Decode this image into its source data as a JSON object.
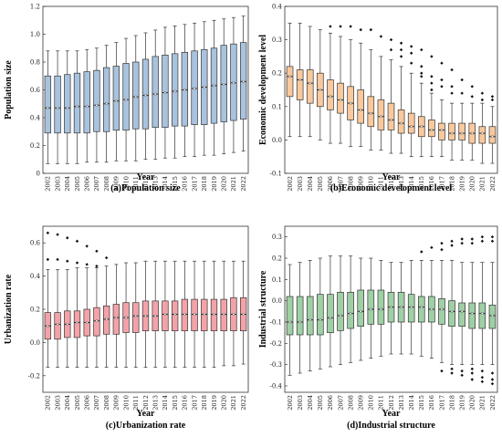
{
  "chart_data": [
    {
      "type": "box",
      "caption": "(a)Population size",
      "xlabel": "Year",
      "ylabel": "Population size",
      "ylim": [
        0,
        1.2
      ],
      "yticks": [
        "0",
        "0.2",
        "0.4",
        "0.6",
        "0.8",
        "1.0",
        "1.2"
      ],
      "categories": [
        "2002",
        "2003",
        "2004",
        "2005",
        "2006",
        "2007",
        "2008",
        "2009",
        "2010",
        "2011",
        "2012",
        "2013",
        "2014",
        "2015",
        "2016",
        "2017",
        "2018",
        "2019",
        "2020",
        "2021",
        "2022"
      ],
      "color": "#a9c3de",
      "stroke": "#333333",
      "boxes": [
        {
          "low": 0.07,
          "q1": 0.29,
          "median": 0.47,
          "q3": 0.7,
          "high": 0.88,
          "outliers": []
        },
        {
          "low": 0.07,
          "q1": 0.29,
          "median": 0.47,
          "q3": 0.7,
          "high": 0.88,
          "outliers": []
        },
        {
          "low": 0.07,
          "q1": 0.29,
          "median": 0.47,
          "q3": 0.71,
          "high": 0.88,
          "outliers": []
        },
        {
          "low": 0.07,
          "q1": 0.29,
          "median": 0.48,
          "q3": 0.72,
          "high": 0.88,
          "outliers": []
        },
        {
          "low": 0.08,
          "q1": 0.29,
          "median": 0.48,
          "q3": 0.73,
          "high": 0.89,
          "outliers": []
        },
        {
          "low": 0.08,
          "q1": 0.3,
          "median": 0.49,
          "q3": 0.74,
          "high": 0.9,
          "outliers": []
        },
        {
          "low": 0.08,
          "q1": 0.3,
          "median": 0.5,
          "q3": 0.76,
          "high": 0.92,
          "outliers": []
        },
        {
          "low": 0.09,
          "q1": 0.31,
          "median": 0.52,
          "q3": 0.77,
          "high": 0.94,
          "outliers": []
        },
        {
          "low": 0.09,
          "q1": 0.31,
          "median": 0.53,
          "q3": 0.79,
          "high": 0.97,
          "outliers": []
        },
        {
          "low": 0.09,
          "q1": 0.32,
          "median": 0.55,
          "q3": 0.8,
          "high": 0.99,
          "outliers": []
        },
        {
          "low": 0.1,
          "q1": 0.32,
          "median": 0.56,
          "q3": 0.82,
          "high": 1.01,
          "outliers": []
        },
        {
          "low": 0.1,
          "q1": 0.33,
          "median": 0.57,
          "q3": 0.84,
          "high": 1.03,
          "outliers": []
        },
        {
          "low": 0.11,
          "q1": 0.33,
          "median": 0.58,
          "q3": 0.85,
          "high": 1.05,
          "outliers": []
        },
        {
          "low": 0.11,
          "q1": 0.34,
          "median": 0.59,
          "q3": 0.86,
          "high": 1.06,
          "outliers": []
        },
        {
          "low": 0.12,
          "q1": 0.34,
          "median": 0.6,
          "q3": 0.87,
          "high": 1.07,
          "outliers": []
        },
        {
          "low": 0.12,
          "q1": 0.35,
          "median": 0.61,
          "q3": 0.88,
          "high": 1.08,
          "outliers": []
        },
        {
          "low": 0.13,
          "q1": 0.35,
          "median": 0.62,
          "q3": 0.89,
          "high": 1.09,
          "outliers": []
        },
        {
          "low": 0.13,
          "q1": 0.36,
          "median": 0.63,
          "q3": 0.9,
          "high": 1.1,
          "outliers": []
        },
        {
          "low": 0.14,
          "q1": 0.37,
          "median": 0.64,
          "q3": 0.92,
          "high": 1.11,
          "outliers": []
        },
        {
          "low": 0.15,
          "q1": 0.38,
          "median": 0.65,
          "q3": 0.93,
          "high": 1.12,
          "outliers": []
        },
        {
          "low": 0.16,
          "q1": 0.39,
          "median": 0.66,
          "q3": 0.94,
          "high": 1.13,
          "outliers": []
        }
      ]
    },
    {
      "type": "box",
      "caption": "(b)Economic development level",
      "xlabel": "Year",
      "ylabel": "Economic development level",
      "ylim": [
        -0.1,
        0.4
      ],
      "yticks": [
        "-0.1",
        "0.0",
        "0.1",
        "0.2",
        "0.3",
        "0.4"
      ],
      "categories": [
        "2002",
        "2003",
        "2004",
        "2005",
        "2006",
        "2007",
        "2008",
        "2009",
        "2010",
        "2011",
        "2012",
        "2013",
        "2014",
        "2015",
        "2016",
        "2017",
        "2018",
        "2019",
        "2020",
        "2021",
        "2022"
      ],
      "color": "#f9c99d",
      "stroke": "#333333",
      "boxes": [
        {
          "low": 0.01,
          "q1": 0.13,
          "median": 0.19,
          "q3": 0.22,
          "high": 0.35,
          "outliers": []
        },
        {
          "low": 0.01,
          "q1": 0.12,
          "median": 0.18,
          "q3": 0.21,
          "high": 0.35,
          "outliers": []
        },
        {
          "low": 0.01,
          "q1": 0.11,
          "median": 0.17,
          "q3": 0.21,
          "high": 0.34,
          "outliers": []
        },
        {
          "low": 0.0,
          "q1": 0.1,
          "median": 0.15,
          "q3": 0.2,
          "high": 0.33,
          "outliers": []
        },
        {
          "low": -0.01,
          "q1": 0.09,
          "median": 0.13,
          "q3": 0.18,
          "high": 0.32,
          "outliers": [
            0.34
          ]
        },
        {
          "low": -0.01,
          "q1": 0.08,
          "median": 0.12,
          "q3": 0.17,
          "high": 0.31,
          "outliers": [
            0.34
          ]
        },
        {
          "low": -0.02,
          "q1": 0.06,
          "median": 0.11,
          "q3": 0.16,
          "high": 0.3,
          "outliers": [
            0.34
          ]
        },
        {
          "low": -0.02,
          "q1": 0.05,
          "median": 0.09,
          "q3": 0.15,
          "high": 0.29,
          "outliers": [
            0.33
          ]
        },
        {
          "low": -0.03,
          "q1": 0.04,
          "median": 0.08,
          "q3": 0.13,
          "high": 0.27,
          "outliers": [
            0.33
          ]
        },
        {
          "low": -0.03,
          "q1": 0.03,
          "median": 0.07,
          "q3": 0.12,
          "high": 0.25,
          "outliers": [
            0.31
          ]
        },
        {
          "low": -0.04,
          "q1": 0.03,
          "median": 0.06,
          "q3": 0.11,
          "high": 0.24,
          "outliers": [
            0.3,
            0.27
          ]
        },
        {
          "low": -0.04,
          "q1": 0.02,
          "median": 0.05,
          "q3": 0.09,
          "high": 0.22,
          "outliers": [
            0.29,
            0.27,
            0.25
          ]
        },
        {
          "low": -0.05,
          "q1": 0.02,
          "median": 0.04,
          "q3": 0.08,
          "high": 0.2,
          "outliers": [
            0.28,
            0.26,
            0.23
          ]
        },
        {
          "low": -0.05,
          "q1": 0.01,
          "median": 0.04,
          "q3": 0.07,
          "high": 0.17,
          "outliers": [
            0.27,
            0.22,
            0.2,
            0.19
          ]
        },
        {
          "low": -0.05,
          "q1": 0.01,
          "median": 0.03,
          "q3": 0.06,
          "high": 0.14,
          "outliers": [
            0.25,
            0.19,
            0.17,
            0.15
          ]
        },
        {
          "low": -0.05,
          "q1": 0.0,
          "median": 0.03,
          "q3": 0.05,
          "high": 0.12,
          "outliers": [
            0.23,
            0.18,
            0.16
          ]
        },
        {
          "low": -0.06,
          "q1": 0.0,
          "median": 0.02,
          "q3": 0.05,
          "high": 0.11,
          "outliers": [
            0.21,
            0.16,
            0.14
          ]
        },
        {
          "low": -0.06,
          "q1": 0.0,
          "median": 0.02,
          "q3": 0.05,
          "high": 0.11,
          "outliers": [
            0.18,
            0.14
          ]
        },
        {
          "low": -0.06,
          "q1": -0.01,
          "median": 0.02,
          "q3": 0.05,
          "high": 0.11,
          "outliers": [
            0.16,
            0.13
          ]
        },
        {
          "low": -0.07,
          "q1": -0.01,
          "median": 0.02,
          "q3": 0.04,
          "high": 0.11,
          "outliers": [
            0.14,
            0.12
          ]
        },
        {
          "low": -0.07,
          "q1": -0.01,
          "median": 0.01,
          "q3": 0.04,
          "high": 0.1,
          "outliers": [
            0.13,
            0.12
          ]
        }
      ]
    },
    {
      "type": "box",
      "caption": "(c)Urbanization rate",
      "xlabel": "Year",
      "ylabel": "Urbanization rate",
      "ylim": [
        -0.3,
        0.7
      ],
      "yticks": [
        "-0.2",
        "0.0",
        "0.2",
        "0.4",
        "0.6"
      ],
      "categories": [
        "2002",
        "2003",
        "2004",
        "2005",
        "2006",
        "2007",
        "2008",
        "2009",
        "2010",
        "2011",
        "2012",
        "2013",
        "2014",
        "2015",
        "2016",
        "2017",
        "2018",
        "2019",
        "2020",
        "2021",
        "2022"
      ],
      "color": "#f3a3a8",
      "stroke": "#333333",
      "boxes": [
        {
          "low": -0.15,
          "q1": 0.02,
          "median": 0.1,
          "q3": 0.18,
          "high": 0.44,
          "outliers": [
            0.66,
            0.5
          ]
        },
        {
          "low": -0.15,
          "q1": 0.02,
          "median": 0.11,
          "q3": 0.18,
          "high": 0.44,
          "outliers": [
            0.65,
            0.5
          ]
        },
        {
          "low": -0.15,
          "q1": 0.03,
          "median": 0.11,
          "q3": 0.19,
          "high": 0.44,
          "outliers": [
            0.63,
            0.49
          ]
        },
        {
          "low": -0.15,
          "q1": 0.03,
          "median": 0.12,
          "q3": 0.19,
          "high": 0.45,
          "outliers": [
            0.61,
            0.48
          ]
        },
        {
          "low": -0.15,
          "q1": 0.04,
          "median": 0.12,
          "q3": 0.2,
          "high": 0.45,
          "outliers": [
            0.58,
            0.47
          ]
        },
        {
          "low": -0.15,
          "q1": 0.04,
          "median": 0.13,
          "q3": 0.21,
          "high": 0.45,
          "outliers": [
            0.55,
            0.46
          ]
        },
        {
          "low": -0.15,
          "q1": 0.05,
          "median": 0.14,
          "q3": 0.22,
          "high": 0.46,
          "outliers": [
            0.51
          ]
        },
        {
          "low": -0.15,
          "q1": 0.05,
          "median": 0.15,
          "q3": 0.23,
          "high": 0.47,
          "outliers": []
        },
        {
          "low": -0.15,
          "q1": 0.06,
          "median": 0.15,
          "q3": 0.24,
          "high": 0.48,
          "outliers": []
        },
        {
          "low": -0.15,
          "q1": 0.06,
          "median": 0.16,
          "q3": 0.24,
          "high": 0.48,
          "outliers": []
        },
        {
          "low": -0.15,
          "q1": 0.07,
          "median": 0.16,
          "q3": 0.25,
          "high": 0.49,
          "outliers": []
        },
        {
          "low": -0.15,
          "q1": 0.07,
          "median": 0.16,
          "q3": 0.25,
          "high": 0.49,
          "outliers": []
        },
        {
          "low": -0.15,
          "q1": 0.07,
          "median": 0.17,
          "q3": 0.25,
          "high": 0.49,
          "outliers": []
        },
        {
          "low": -0.15,
          "q1": 0.07,
          "median": 0.17,
          "q3": 0.25,
          "high": 0.49,
          "outliers": []
        },
        {
          "low": -0.15,
          "q1": 0.07,
          "median": 0.17,
          "q3": 0.26,
          "high": 0.49,
          "outliers": []
        },
        {
          "low": -0.15,
          "q1": 0.07,
          "median": 0.17,
          "q3": 0.26,
          "high": 0.49,
          "outliers": []
        },
        {
          "low": -0.15,
          "q1": 0.07,
          "median": 0.17,
          "q3": 0.26,
          "high": 0.49,
          "outliers": []
        },
        {
          "low": -0.15,
          "q1": 0.07,
          "median": 0.17,
          "q3": 0.26,
          "high": 0.49,
          "outliers": []
        },
        {
          "low": -0.14,
          "q1": 0.07,
          "median": 0.17,
          "q3": 0.26,
          "high": 0.49,
          "outliers": []
        },
        {
          "low": -0.14,
          "q1": 0.07,
          "median": 0.17,
          "q3": 0.27,
          "high": 0.49,
          "outliers": []
        },
        {
          "low": -0.13,
          "q1": 0.07,
          "median": 0.17,
          "q3": 0.27,
          "high": 0.49,
          "outliers": []
        }
      ]
    },
    {
      "type": "box",
      "caption": "(d)Industrial structure",
      "xlabel": "Year",
      "ylabel": "Industrial structure",
      "ylim": [
        -0.43,
        0.35
      ],
      "yticks": [
        "-0.4",
        "-0.3",
        "-0.2",
        "-0.1",
        "0.0",
        "0.1",
        "0.2",
        "0.3"
      ],
      "categories": [
        "2002",
        "2003",
        "2004",
        "2005",
        "2006",
        "2007",
        "2008",
        "2009",
        "2010",
        "2011",
        "2012",
        "2013",
        "2014",
        "2015",
        "2016",
        "2017",
        "2018",
        "2019",
        "2020",
        "2021",
        "2022"
      ],
      "color": "#9fd0a5",
      "stroke": "#333333",
      "boxes": [
        {
          "low": -0.35,
          "q1": -0.16,
          "median": -0.1,
          "q3": 0.02,
          "high": 0.17,
          "outliers": []
        },
        {
          "low": -0.34,
          "q1": -0.16,
          "median": -0.1,
          "q3": 0.02,
          "high": 0.18,
          "outliers": []
        },
        {
          "low": -0.33,
          "q1": -0.16,
          "median": -0.09,
          "q3": 0.02,
          "high": 0.19,
          "outliers": []
        },
        {
          "low": -0.32,
          "q1": -0.16,
          "median": -0.09,
          "q3": 0.03,
          "high": 0.2,
          "outliers": []
        },
        {
          "low": -0.31,
          "q1": -0.15,
          "median": -0.08,
          "q3": 0.03,
          "high": 0.21,
          "outliers": []
        },
        {
          "low": -0.3,
          "q1": -0.14,
          "median": -0.07,
          "q3": 0.04,
          "high": 0.21,
          "outliers": []
        },
        {
          "low": -0.29,
          "q1": -0.13,
          "median": -0.06,
          "q3": 0.04,
          "high": 0.21,
          "outliers": []
        },
        {
          "low": -0.28,
          "q1": -0.12,
          "median": -0.05,
          "q3": 0.05,
          "high": 0.2,
          "outliers": []
        },
        {
          "low": -0.27,
          "q1": -0.11,
          "median": -0.04,
          "q3": 0.05,
          "high": 0.2,
          "outliers": []
        },
        {
          "low": -0.26,
          "q1": -0.11,
          "median": -0.04,
          "q3": 0.05,
          "high": 0.19,
          "outliers": []
        },
        {
          "low": -0.25,
          "q1": -0.1,
          "median": -0.03,
          "q3": 0.04,
          "high": 0.18,
          "outliers": []
        },
        {
          "low": -0.25,
          "q1": -0.1,
          "median": -0.03,
          "q3": 0.04,
          "high": 0.18,
          "outliers": []
        },
        {
          "low": -0.25,
          "q1": -0.1,
          "median": -0.03,
          "q3": 0.03,
          "high": 0.19,
          "outliers": []
        },
        {
          "low": -0.26,
          "q1": -0.1,
          "median": -0.03,
          "q3": 0.02,
          "high": 0.19,
          "outliers": [
            0.23
          ]
        },
        {
          "low": -0.27,
          "q1": -0.1,
          "median": -0.04,
          "q3": 0.02,
          "high": 0.19,
          "outliers": [
            0.25
          ]
        },
        {
          "low": -0.29,
          "q1": -0.11,
          "median": -0.04,
          "q3": 0.01,
          "high": 0.19,
          "outliers": [
            0.27,
            0.24,
            -0.33
          ]
        },
        {
          "low": -0.3,
          "q1": -0.12,
          "median": -0.05,
          "q3": 0.0,
          "high": 0.19,
          "outliers": [
            0.28,
            0.26,
            -0.32,
            -0.34
          ]
        },
        {
          "low": -0.3,
          "q1": -0.12,
          "median": -0.05,
          "q3": -0.01,
          "high": 0.18,
          "outliers": [
            0.29,
            0.27,
            -0.33,
            -0.35
          ]
        },
        {
          "low": -0.3,
          "q1": -0.13,
          "median": -0.06,
          "q3": -0.01,
          "high": 0.18,
          "outliers": [
            0.29,
            0.27,
            -0.32,
            -0.34,
            -0.37
          ]
        },
        {
          "low": -0.3,
          "q1": -0.13,
          "median": -0.06,
          "q3": -0.01,
          "high": 0.18,
          "outliers": [
            0.3,
            0.28,
            -0.33,
            -0.36,
            -0.38
          ]
        },
        {
          "low": -0.3,
          "q1": -0.13,
          "median": -0.07,
          "q3": -0.02,
          "high": 0.18,
          "outliers": [
            0.3,
            0.28,
            -0.34,
            -0.37,
            -0.39
          ]
        }
      ]
    }
  ]
}
